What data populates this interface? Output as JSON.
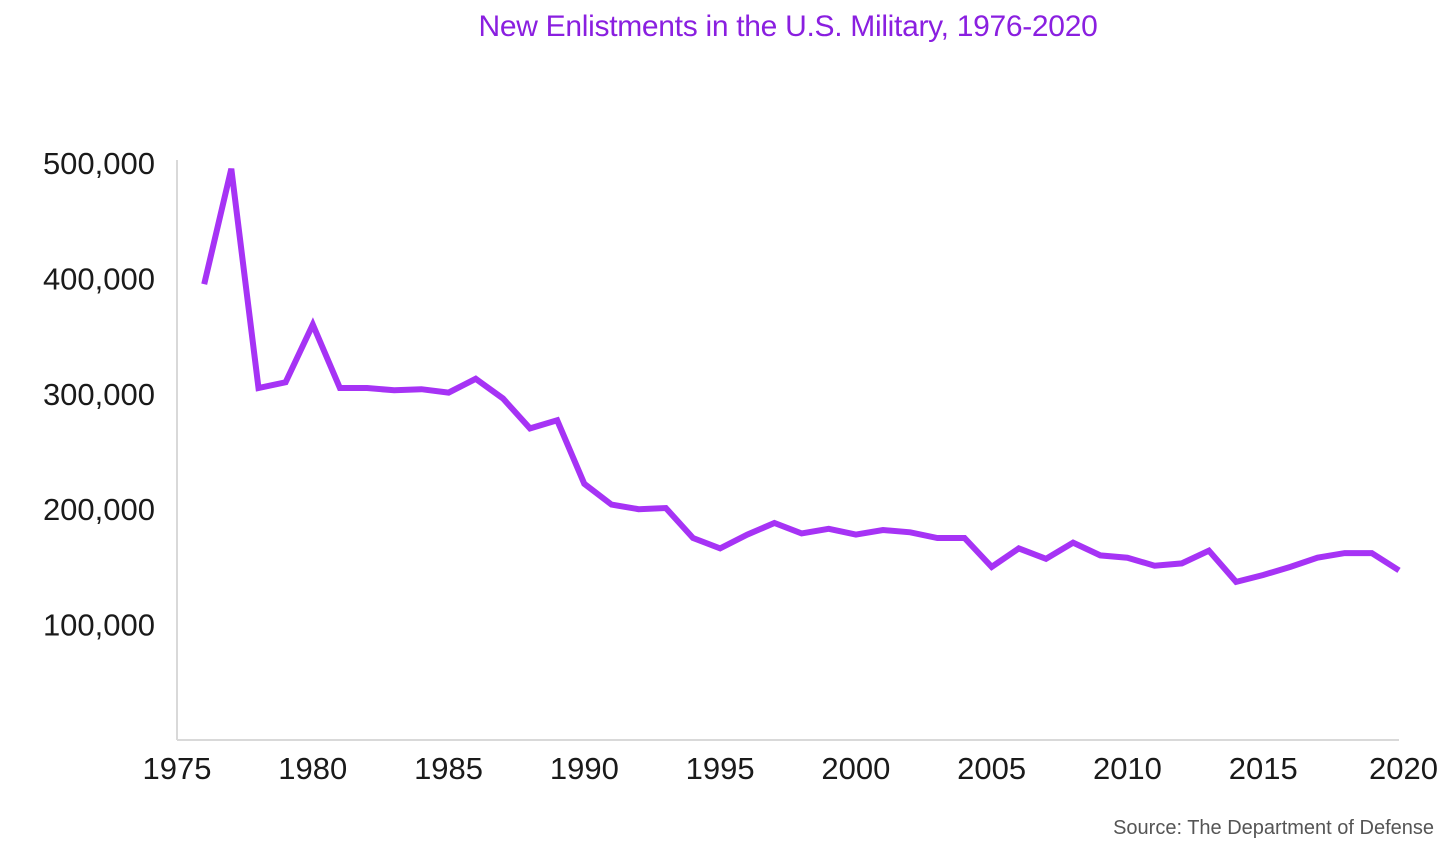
{
  "chart_data": {
    "type": "line",
    "title": "New Enlistments in the U.S. Military, 1976-2020",
    "xlabel": "",
    "ylabel": "",
    "source": "Source: The Department of Defense",
    "xlim": [
      1975,
      2020
    ],
    "ylim": [
      0,
      500000
    ],
    "x_ticks": [
      1975,
      1980,
      1985,
      1990,
      1995,
      2000,
      2005,
      2010,
      2015,
      2020
    ],
    "y_ticks": [
      {
        "value": 100000,
        "label": "100,000"
      },
      {
        "value": 200000,
        "label": "200,000"
      },
      {
        "value": 300000,
        "label": "300,000"
      },
      {
        "value": 400000,
        "label": "400,000"
      },
      {
        "value": 500000,
        "label": "500,000"
      }
    ],
    "grid": false,
    "series": [
      {
        "color": "#a633f5",
        "x": [
          1976,
          1977,
          1978,
          1979,
          1980,
          1981,
          1982,
          1983,
          1984,
          1985,
          1986,
          1987,
          1988,
          1989,
          1990,
          1991,
          1992,
          1993,
          1994,
          1995,
          1996,
          1997,
          1998,
          1999,
          2000,
          2001,
          2002,
          2003,
          2004,
          2005,
          2006,
          2007,
          2008,
          2009,
          2010,
          2011,
          2012,
          2013,
          2014,
          2015,
          2016,
          2017,
          2018,
          2019,
          2020
        ],
        "y": [
          395000,
          495000,
          305000,
          310000,
          360000,
          305000,
          305000,
          303000,
          304000,
          301000,
          313000,
          296000,
          270000,
          277000,
          222000,
          204000,
          200000,
          201000,
          175000,
          166000,
          178000,
          188000,
          179000,
          183000,
          178000,
          182000,
          180000,
          175000,
          175000,
          150000,
          166000,
          157000,
          171000,
          160000,
          158000,
          151000,
          153000,
          164000,
          137000,
          143000,
          150000,
          158000,
          162000,
          162000,
          147000
        ]
      }
    ]
  }
}
